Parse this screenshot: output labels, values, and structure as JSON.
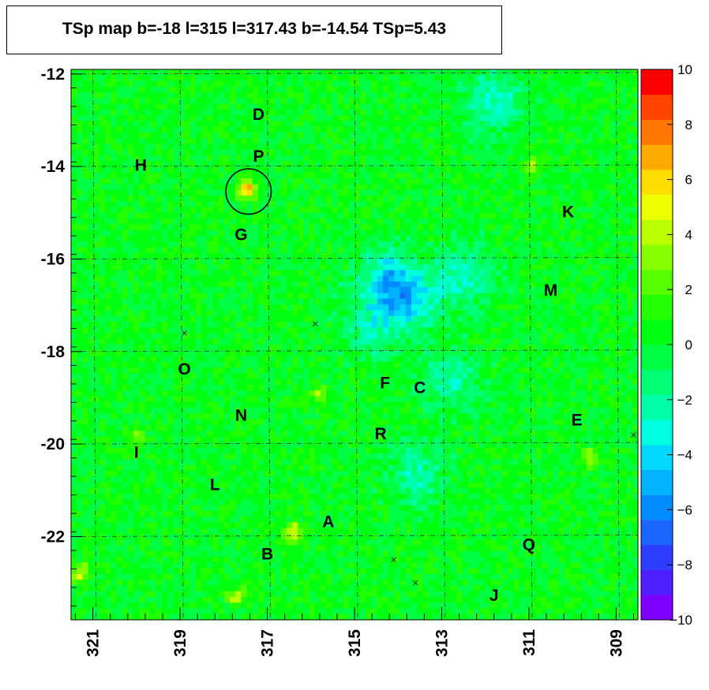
{
  "chart_data": {
    "type": "heatmap",
    "title": "TSp map b=-18 l=315 l=317.43 b=-14.54 TSp=5.43",
    "xlabel": "",
    "ylabel": "",
    "xlim": [
      321.5,
      308.5
    ],
    "ylim": [
      -23.8,
      -11.9
    ],
    "x_ticks": [
      "321",
      "319",
      "317",
      "315",
      "313",
      "311",
      "309"
    ],
    "x_tick_values": [
      321,
      319,
      317,
      315,
      313,
      311,
      309
    ],
    "y_ticks": [
      "-12",
      "-14",
      "-16",
      "-18",
      "-20",
      "-22"
    ],
    "y_tick_values": [
      -12,
      -14,
      -16,
      -18,
      -20,
      -22
    ],
    "colorbar": {
      "min": -10,
      "max": 10,
      "labels": [
        "10",
        "8",
        "6",
        "4",
        "2",
        "0",
        "−2",
        "−4",
        "−6",
        "−8",
        "−10"
      ],
      "label_values": [
        10,
        8,
        6,
        4,
        2,
        0,
        -2,
        -4,
        -6,
        -8,
        -10
      ],
      "colors": [
        "#7f00ff",
        "#4f1fff",
        "#2e3cff",
        "#1b66ff",
        "#008bff",
        "#00b2ff",
        "#00d8ff",
        "#00ffe1",
        "#00ffaa",
        "#00ff77",
        "#00ff44",
        "#00ff11",
        "#22ff00",
        "#55ff00",
        "#88ff00",
        "#bbff00",
        "#eeff00",
        "#ffdd00",
        "#ffaa00",
        "#ff7700",
        "#ff4400",
        "#ff0000"
      ]
    },
    "background_value": 0.3,
    "hotspots": [
      {
        "l": 317.45,
        "b": -14.5,
        "value": 6.5
      },
      {
        "l": 316.4,
        "b": -21.9,
        "value": 5.0
      },
      {
        "l": 321.3,
        "b": -22.8,
        "value": 4.5
      },
      {
        "l": 309.6,
        "b": -20.3,
        "value": 4.0
      },
      {
        "l": 310.9,
        "b": -14.0,
        "value": 3.5
      },
      {
        "l": 315.8,
        "b": -18.9,
        "value": 3.0
      },
      {
        "l": 317.7,
        "b": -23.3,
        "value": 4.0
      },
      {
        "l": 320.0,
        "b": -19.9,
        "value": 3.0
      }
    ],
    "coldspots": [
      {
        "l": 314.2,
        "b": -16.5,
        "value": -4.5
      },
      {
        "l": 313.7,
        "b": -16.9,
        "value": -3.5
      },
      {
        "l": 312.5,
        "b": -16.4,
        "value": -3.0
      },
      {
        "l": 311.8,
        "b": -12.6,
        "value": -3.0
      },
      {
        "l": 314.6,
        "b": -17.5,
        "value": -2.5
      },
      {
        "l": 312.8,
        "b": -18.6,
        "value": -2.5
      },
      {
        "l": 313.6,
        "b": -20.7,
        "value": -2.5
      }
    ],
    "sources": [
      {
        "name": "D",
        "l": 317.2,
        "b": -12.9
      },
      {
        "name": "P",
        "l": 317.2,
        "b": -13.8
      },
      {
        "name": "H",
        "l": 319.9,
        "b": -14.0
      },
      {
        "name": "G",
        "l": 317.6,
        "b": -15.5
      },
      {
        "name": "K",
        "l": 310.1,
        "b": -15.0
      },
      {
        "name": "M",
        "l": 310.5,
        "b": -16.7
      },
      {
        "name": "O",
        "l": 318.9,
        "b": -18.4
      },
      {
        "name": "F",
        "l": 314.3,
        "b": -18.7
      },
      {
        "name": "C",
        "l": 313.5,
        "b": -18.8
      },
      {
        "name": "N",
        "l": 317.6,
        "b": -19.4
      },
      {
        "name": "E",
        "l": 309.9,
        "b": -19.5
      },
      {
        "name": "R",
        "l": 314.4,
        "b": -19.8
      },
      {
        "name": "I",
        "l": 320.0,
        "b": -20.2
      },
      {
        "name": "L",
        "l": 318.2,
        "b": -20.9
      },
      {
        "name": "A",
        "l": 315.6,
        "b": -21.7
      },
      {
        "name": "Q",
        "l": 311.0,
        "b": -22.2
      },
      {
        "name": "B",
        "l": 317.0,
        "b": -22.4
      },
      {
        "name": "J",
        "l": 311.8,
        "b": -23.3
      }
    ],
    "circle": {
      "l": 317.43,
      "b": -14.54,
      "radius_deg": 0.52
    },
    "markers_x": [
      {
        "l": 318.9,
        "b": -17.6
      },
      {
        "l": 315.9,
        "b": -17.4
      },
      {
        "l": 314.1,
        "b": -22.5
      },
      {
        "l": 313.6,
        "b": -23.0
      },
      {
        "l": 308.6,
        "b": -19.8
      }
    ],
    "grid": true
  }
}
